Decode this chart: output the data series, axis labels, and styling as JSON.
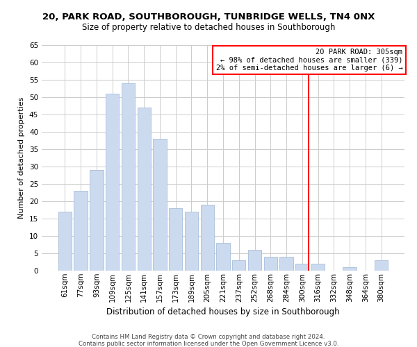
{
  "title": "20, PARK ROAD, SOUTHBOROUGH, TUNBRIDGE WELLS, TN4 0NX",
  "subtitle": "Size of property relative to detached houses in Southborough",
  "xlabel": "Distribution of detached houses by size in Southborough",
  "ylabel": "Number of detached properties",
  "bar_labels": [
    "61sqm",
    "77sqm",
    "93sqm",
    "109sqm",
    "125sqm",
    "141sqm",
    "157sqm",
    "173sqm",
    "189sqm",
    "205sqm",
    "221sqm",
    "237sqm",
    "252sqm",
    "268sqm",
    "284sqm",
    "300sqm",
    "316sqm",
    "332sqm",
    "348sqm",
    "364sqm",
    "380sqm"
  ],
  "bar_heights": [
    17,
    23,
    29,
    51,
    54,
    47,
    38,
    18,
    17,
    19,
    8,
    3,
    6,
    4,
    4,
    2,
    2,
    0,
    1,
    0,
    3
  ],
  "bar_color": "#ccdaf0",
  "bar_edge_color": "#a8bfd8",
  "vline_color": "red",
  "vline_bar_index": 15,
  "ylim": [
    0,
    65
  ],
  "yticks": [
    0,
    5,
    10,
    15,
    20,
    25,
    30,
    35,
    40,
    45,
    50,
    55,
    60,
    65
  ],
  "annotation_title": "20 PARK ROAD: 305sqm",
  "annotation_line1": "← 98% of detached houses are smaller (339)",
  "annotation_line2": "2% of semi-detached houses are larger (6) →",
  "footer1": "Contains HM Land Registry data © Crown copyright and database right 2024.",
  "footer2": "Contains public sector information licensed under the Open Government Licence v3.0.",
  "background_color": "#ffffff",
  "grid_color": "#cccccc",
  "title_fontsize": 9.5,
  "subtitle_fontsize": 8.5,
  "ylabel_fontsize": 8,
  "xlabel_fontsize": 8.5,
  "tick_fontsize": 7.5,
  "footer_fontsize": 6.2,
  "annotation_fontsize": 7.5
}
